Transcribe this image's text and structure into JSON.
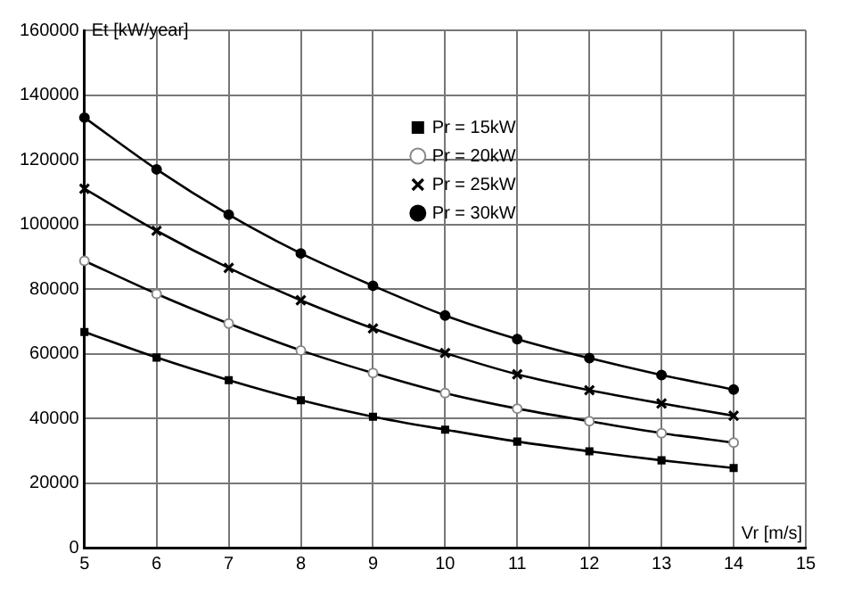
{
  "chart_data": {
    "type": "line",
    "xlabel": "Vr [m/s]",
    "ylabel": "Et [kW/year]",
    "x": [
      5,
      6,
      7,
      8,
      9,
      10,
      11,
      12,
      13,
      14
    ],
    "series": [
      {
        "name": "Pr = 15kW",
        "color": "#000000",
        "marker": "square",
        "values": [
          66700,
          58800,
          51800,
          45600,
          40500,
          36500,
          32800,
          29800,
          27000,
          24600
        ]
      },
      {
        "name": "Pr = 20kW",
        "color": "#000000",
        "marker": "circle",
        "values": [
          88700,
          78500,
          69300,
          61000,
          54000,
          47800,
          43000,
          39100,
          35400,
          32500
        ]
      },
      {
        "name": "Pr = 25kW",
        "color": "#000000",
        "marker": "cross",
        "values": [
          111000,
          98000,
          86500,
          76500,
          67800,
          60200,
          53600,
          48700,
          44600,
          40800
        ]
      },
      {
        "name": "Pr = 30kW",
        "color": "#000000",
        "marker": "circle",
        "values": [
          133000,
          117000,
          103000,
          91000,
          81000,
          71800,
          64500,
          58600,
          53400,
          48900
        ]
      }
    ],
    "xlim": [
      5,
      15
    ],
    "xticks": [
      5,
      6,
      7,
      8,
      9,
      10,
      11,
      12,
      13,
      14,
      15
    ],
    "ylim": [
      0,
      160000
    ],
    "yticks": [
      0,
      20000,
      40000,
      60000,
      80000,
      100000,
      120000,
      140000,
      160000
    ],
    "grid": true,
    "legend": "top",
    "line_style": "solid"
  }
}
